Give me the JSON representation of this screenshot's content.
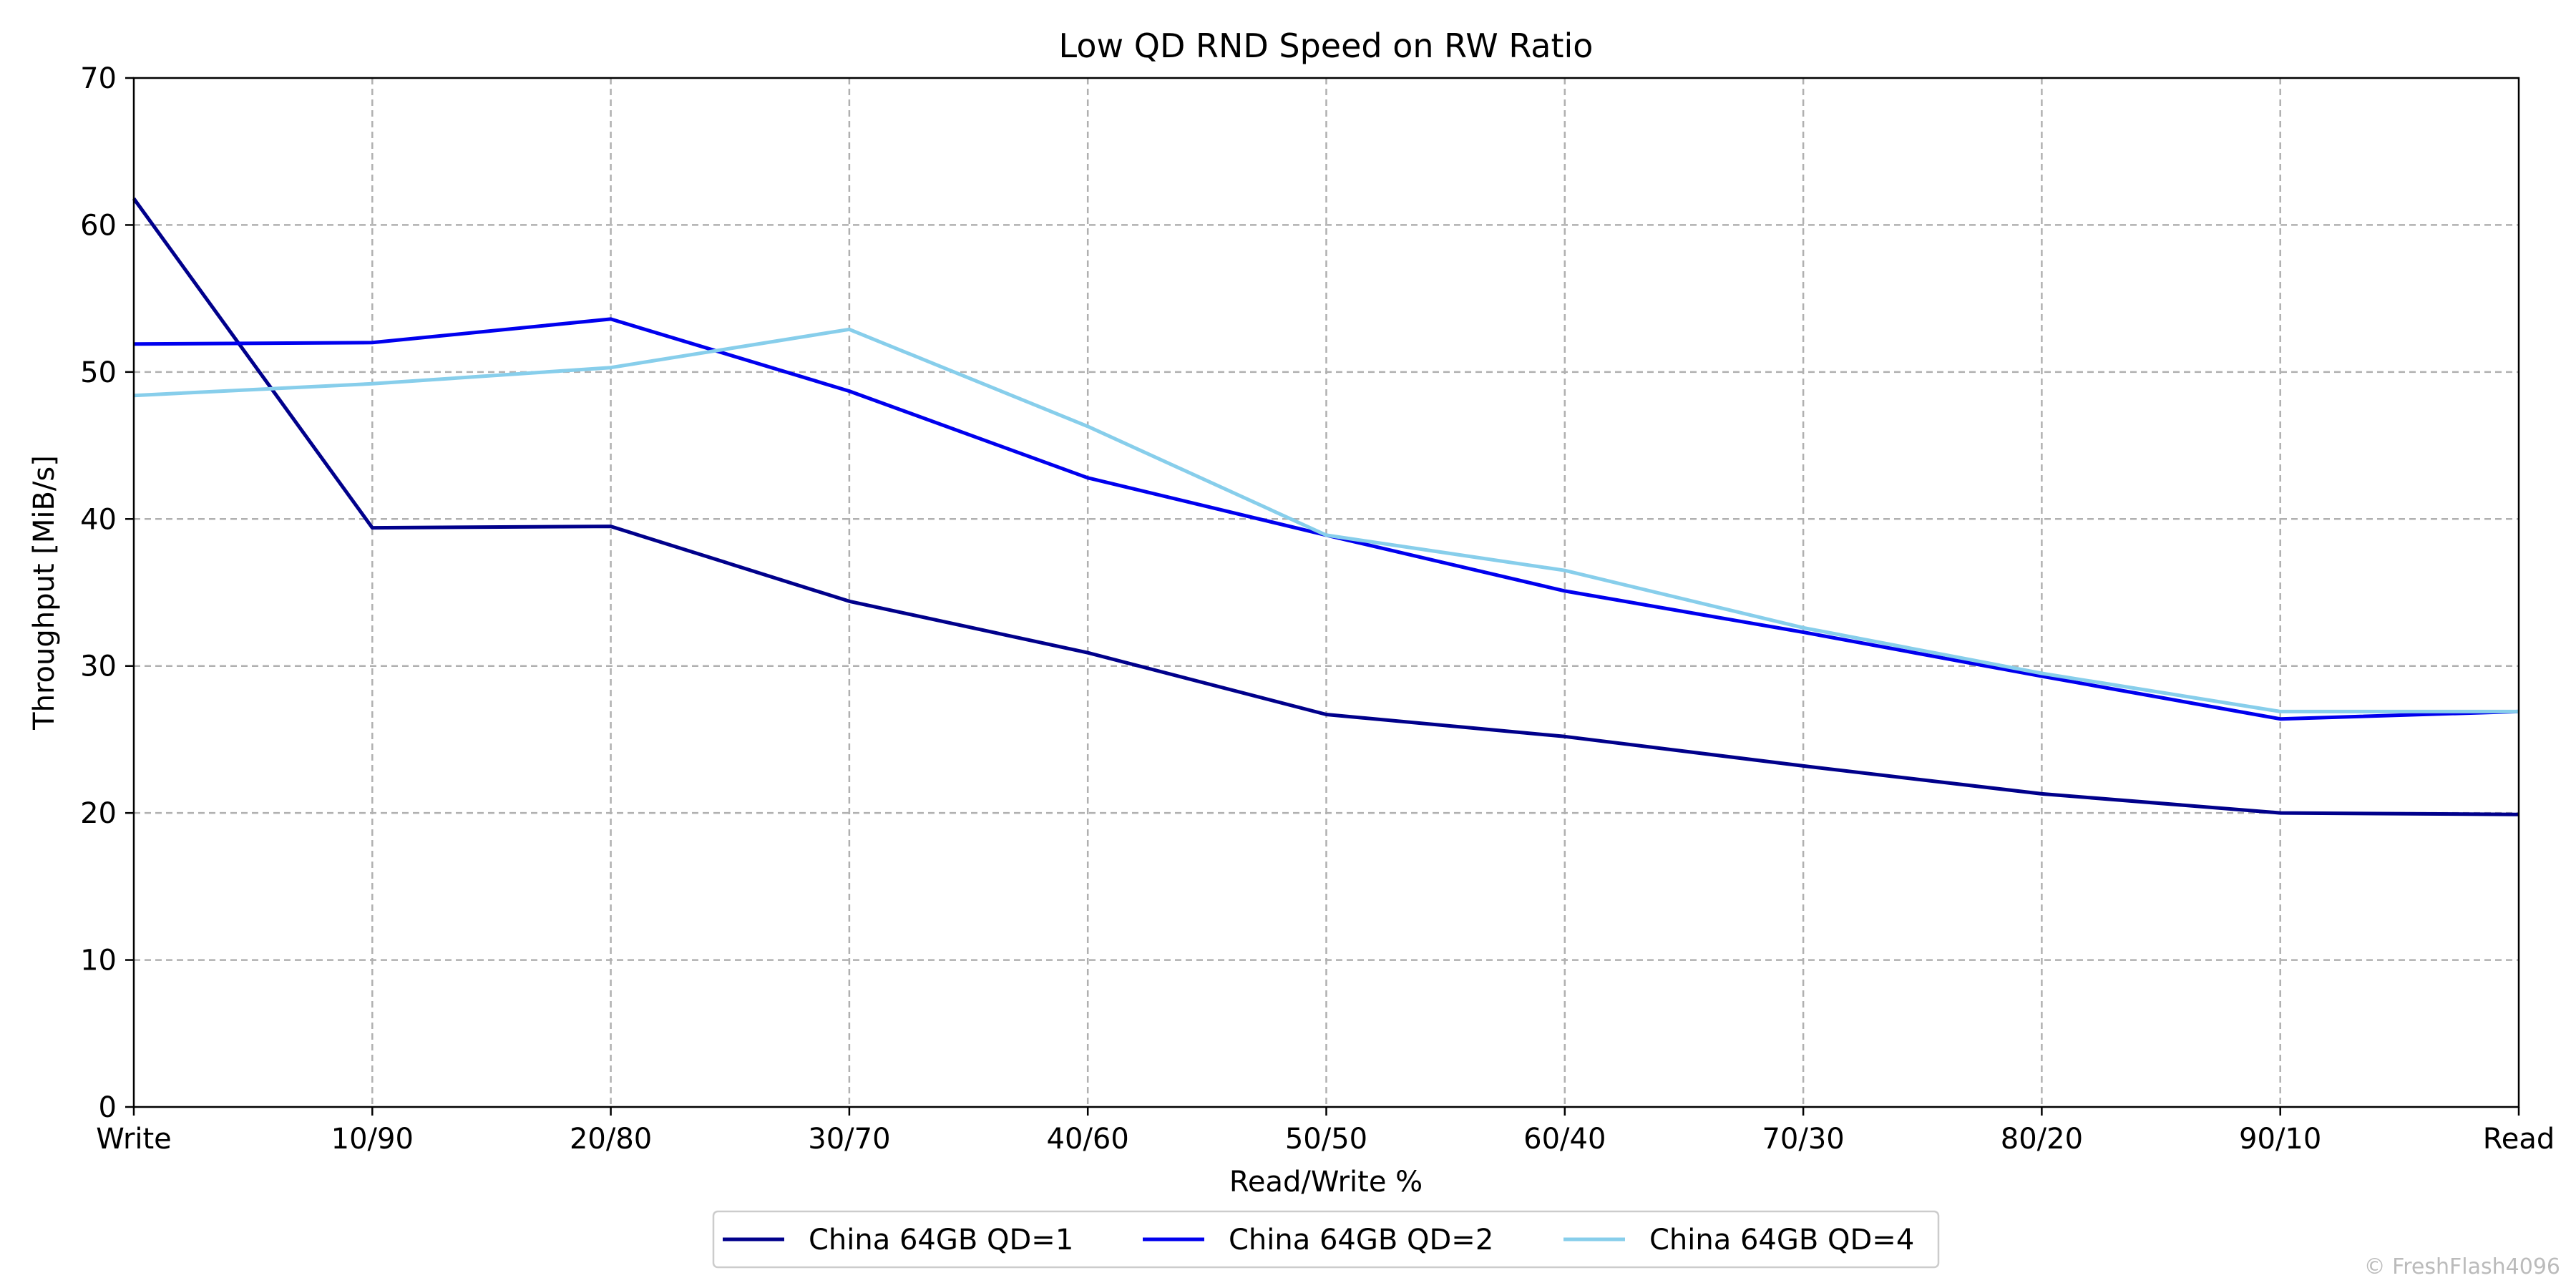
{
  "chart_data": {
    "type": "line",
    "title": "Low QD RND Speed on RW Ratio",
    "xlabel": "Read/Write %",
    "ylabel": "Throughput [MiB/s]",
    "categories": [
      "Write",
      "10/90",
      "20/80",
      "30/70",
      "40/60",
      "50/50",
      "60/40",
      "70/30",
      "80/20",
      "90/10",
      "Read"
    ],
    "ylim": [
      0,
      70
    ],
    "yticks": [
      "0",
      "10",
      "20",
      "30",
      "40",
      "50",
      "60",
      "70"
    ],
    "grid": true,
    "legend_position": "bottom-center",
    "series": [
      {
        "name": "China 64GB QD=1",
        "color": "#00008b",
        "values": [
          61.8,
          39.4,
          39.5,
          34.4,
          30.9,
          26.7,
          25.2,
          23.2,
          21.3,
          20.0,
          19.9
        ]
      },
      {
        "name": "China 64GB QD=2",
        "color": "#0000ee",
        "values": [
          51.9,
          52.0,
          53.6,
          48.7,
          42.8,
          38.9,
          35.1,
          32.3,
          29.3,
          26.4,
          26.9
        ]
      },
      {
        "name": "China 64GB QD=4",
        "color": "#87ceeb",
        "values": [
          48.4,
          49.2,
          50.3,
          52.9,
          46.3,
          38.9,
          36.5,
          32.6,
          29.5,
          26.9,
          26.9
        ]
      }
    ]
  },
  "watermark": "© FreshFlash4096"
}
